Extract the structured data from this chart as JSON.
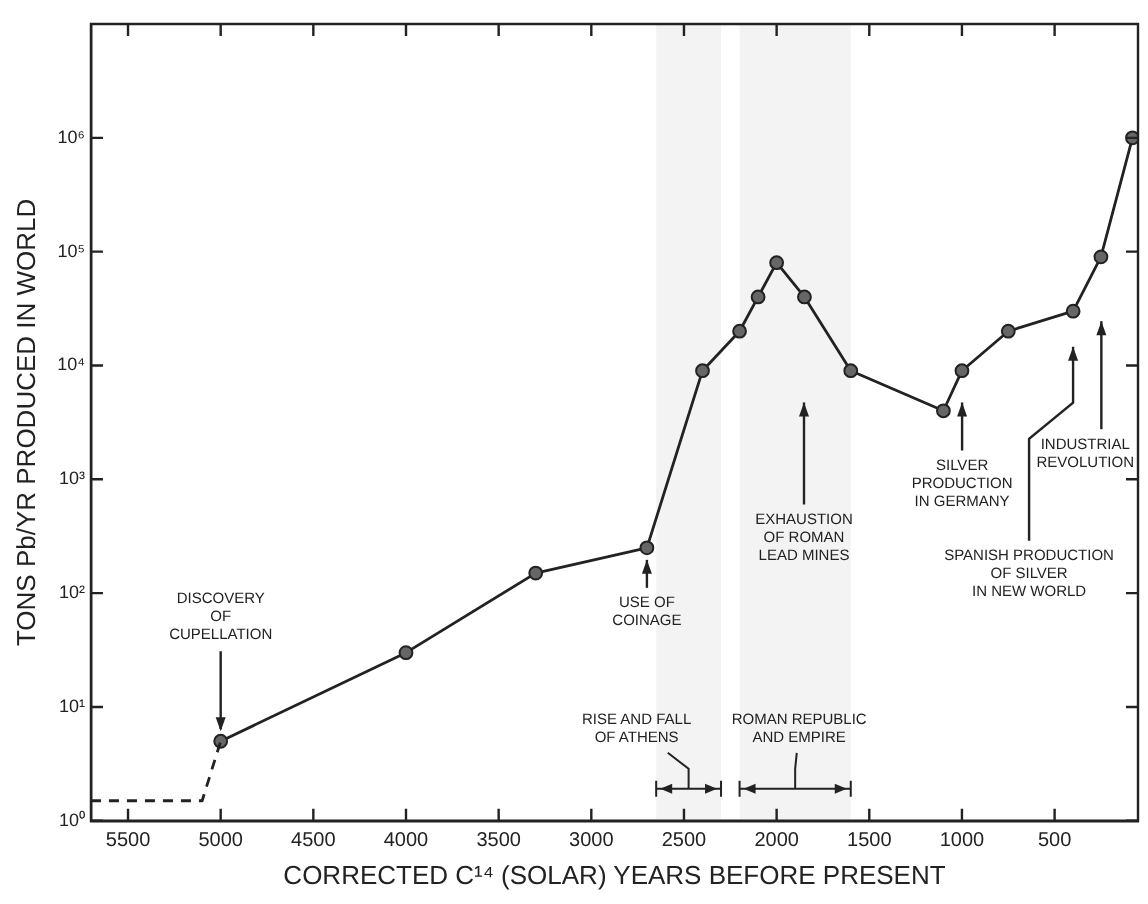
{
  "chart_data": {
    "type": "line",
    "xlabel": "CORRECTED C¹⁴ (SOLAR) YEARS BEFORE PRESENT",
    "ylabel": "TONS Pb/YR PRODUCED IN WORLD",
    "log": "y",
    "grid": false,
    "legend": false,
    "xlim": [
      5700,
      50
    ],
    "xticks": [
      5500,
      5000,
      4500,
      4000,
      3500,
      3000,
      2500,
      2000,
      1500,
      1000,
      500
    ],
    "ylim": [
      1,
      10000000
    ],
    "yticks": [
      {
        "value": 1,
        "label": "10⁰"
      },
      {
        "value": 10,
        "label": "10¹"
      },
      {
        "value": 100,
        "label": "10²"
      },
      {
        "value": 1000,
        "label": "10³"
      },
      {
        "value": 10000,
        "label": "10⁴"
      },
      {
        "value": 100000,
        "label": "10⁵"
      },
      {
        "value": 1000000,
        "label": "10⁶"
      }
    ],
    "series": [
      {
        "color": "#222222",
        "line_style": "dashed",
        "marker": "none",
        "x": [
          5700,
          5100,
          5000
        ],
        "values": [
          1.5,
          1.5,
          5
        ]
      },
      {
        "color": "#222222",
        "line_style": "solid",
        "marker": "circle",
        "x": [
          5000,
          4000,
          3300,
          2700,
          2400,
          2200,
          2100,
          2000,
          1850,
          1600,
          1100,
          1000,
          750,
          400,
          250,
          80
        ],
        "values": [
          5,
          30,
          150,
          250,
          9000,
          20000,
          40000,
          80000,
          40000,
          9000,
          4000,
          9000,
          20000,
          30000,
          90000,
          1000000
        ]
      }
    ],
    "annotations": [
      {
        "text": "DISCOVERY\nOF\nCUPELLATION",
        "x": 5000,
        "y": 5
      },
      {
        "text": "USE OF\nCOINAGE",
        "x": 2700,
        "y": 250
      },
      "EXHAUSTION\nOF ROMAN\nLEAD MINES",
      "SILVER\nPRODUCTION\nIN GERMANY",
      "SPANISH PRODUCTION\nOF SILVER\nIN NEW WORLD",
      "INDUSTRIAL\nREVOLUTION"
    ],
    "bands": [
      {
        "axis": "x",
        "from": 2300,
        "to": 2650,
        "label": "RISE AND FALL\nOF ATHENS"
      },
      {
        "axis": "x",
        "from": 1600,
        "to": 2200,
        "label": "ROMAN REPUBLIC\nAND EMPIRE"
      }
    ]
  }
}
